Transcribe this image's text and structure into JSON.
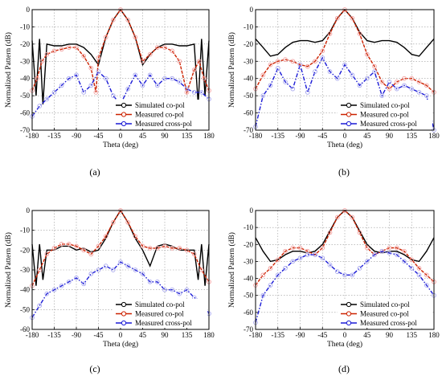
{
  "figure": {
    "panel_labels": [
      "(a)",
      "(b)",
      "(c)",
      "(d)"
    ],
    "legend_labels": [
      "Simulated co-pol",
      "Measured co-pol",
      "Measured cross-pol"
    ],
    "colors": {
      "simulated": "#000000",
      "measured_co": "#cc2200",
      "measured_cross": "#1a1ad6",
      "marker_co": "#f2a0a0",
      "marker_cross": "#a8a8ee"
    }
  },
  "chart_data": [
    {
      "type": "line",
      "panel": "(a)",
      "xlabel": "Theta (deg)",
      "ylabel": "Normalized Pattern (dB)",
      "xlim": [
        -180,
        180
      ],
      "ylim": [
        -70,
        0
      ],
      "xticks": [
        -180,
        -135,
        -90,
        -45,
        0,
        45,
        90,
        135,
        180
      ],
      "yticks": [
        0,
        -10,
        -20,
        -30,
        -40,
        -50,
        -60,
        -70
      ],
      "grid": true,
      "legend": "bottom-right",
      "series": [
        {
          "name": "Simulated co-pol",
          "x": [
            -180,
            -172,
            -165,
            -158,
            -150,
            -135,
            -120,
            -105,
            -90,
            -75,
            -60,
            -45,
            -30,
            -15,
            0,
            15,
            30,
            45,
            60,
            75,
            90,
            105,
            120,
            135,
            150,
            158,
            165,
            172,
            180
          ],
          "values": [
            -18,
            -50,
            -17,
            -55,
            -20,
            -21,
            -21,
            -20,
            -20,
            -22,
            -26,
            -32,
            -16,
            -6,
            0,
            -6,
            -16,
            -32,
            -26,
            -22,
            -20,
            -20,
            -21,
            -21,
            -20,
            -55,
            -17,
            -50,
            -18
          ]
        },
        {
          "name": "Measured co-pol",
          "x": [
            -180,
            -170,
            -160,
            -150,
            -135,
            -120,
            -105,
            -90,
            -75,
            -60,
            -50,
            -45,
            -30,
            -15,
            0,
            15,
            30,
            45,
            60,
            75,
            90,
            105,
            120,
            135,
            150,
            160,
            170,
            180
          ],
          "values": [
            -47,
            -40,
            -30,
            -26,
            -24,
            -23,
            -22,
            -22,
            -27,
            -34,
            -48,
            -28,
            -16,
            -6,
            0,
            -6,
            -16,
            -30,
            -26,
            -22,
            -22,
            -24,
            -30,
            -48,
            -35,
            -30,
            -40,
            -47
          ]
        },
        {
          "name": "Measured cross-pol",
          "x": [
            -180,
            -165,
            -150,
            -135,
            -120,
            -105,
            -90,
            -75,
            -60,
            -45,
            -30,
            -15,
            0,
            15,
            30,
            45,
            60,
            75,
            90,
            105,
            120,
            135,
            150,
            165,
            180
          ],
          "values": [
            -62,
            -56,
            -52,
            -48,
            -44,
            -40,
            -38,
            -48,
            -44,
            -36,
            -40,
            -50,
            -55,
            -46,
            -38,
            -44,
            -38,
            -44,
            -40,
            -40,
            -42,
            -46,
            -48,
            -48,
            -52
          ]
        }
      ]
    },
    {
      "type": "line",
      "panel": "(b)",
      "xlabel": "Theta (deg)",
      "ylabel": "Normalized Pattern (dB)",
      "xlim": [
        -180,
        180
      ],
      "ylim": [
        -70,
        0
      ],
      "xticks": [
        -180,
        -135,
        -90,
        -45,
        0,
        45,
        90,
        135,
        180
      ],
      "yticks": [
        0,
        -10,
        -20,
        -30,
        -40,
        -50,
        -60,
        -70
      ],
      "grid": true,
      "legend": "bottom-right",
      "series": [
        {
          "name": "Simulated co-pol",
          "x": [
            -180,
            -165,
            -150,
            -135,
            -120,
            -105,
            -90,
            -75,
            -60,
            -45,
            -30,
            -15,
            0,
            15,
            30,
            45,
            60,
            75,
            90,
            105,
            120,
            135,
            150,
            165,
            180
          ],
          "values": [
            -17,
            -22,
            -27,
            -26,
            -22,
            -19,
            -18,
            -18,
            -19,
            -18,
            -13,
            -5,
            0,
            -5,
            -13,
            -18,
            -19,
            -18,
            -18,
            -19,
            -22,
            -26,
            -27,
            -22,
            -17
          ]
        },
        {
          "name": "Measured co-pol",
          "x": [
            -180,
            -165,
            -150,
            -135,
            -120,
            -105,
            -90,
            -75,
            -60,
            -45,
            -30,
            -15,
            0,
            15,
            30,
            45,
            60,
            75,
            90,
            105,
            120,
            135,
            150,
            165,
            180
          ],
          "values": [
            -46,
            -38,
            -32,
            -30,
            -29,
            -30,
            -32,
            -33,
            -30,
            -24,
            -14,
            -5,
            0,
            -5,
            -14,
            -26,
            -33,
            -42,
            -46,
            -42,
            -40,
            -40,
            -42,
            -44,
            -48
          ]
        },
        {
          "name": "Measured cross-pol",
          "x": [
            -180,
            -165,
            -150,
            -135,
            -120,
            -105,
            -90,
            -75,
            -60,
            -45,
            -30,
            -15,
            0,
            15,
            30,
            45,
            60,
            75,
            90,
            105,
            120,
            135,
            150,
            165,
            180
          ],
          "values": [
            -68,
            -50,
            -44,
            -34,
            -42,
            -46,
            -32,
            -48,
            -36,
            -28,
            -36,
            -40,
            -32,
            -38,
            -44,
            -40,
            -36,
            -50,
            -42,
            -46,
            -44,
            -46,
            -48,
            -50,
            -70
          ]
        }
      ]
    },
    {
      "type": "line",
      "panel": "(c)",
      "xlabel": "Theta (deg)",
      "ylabel": "Normalized Pattern (dB)",
      "xlim": [
        -180,
        180
      ],
      "ylim": [
        -60,
        0
      ],
      "xticks": [
        -180,
        -135,
        -90,
        -45,
        0,
        45,
        90,
        135,
        180
      ],
      "yticks": [
        0,
        -10,
        -20,
        -30,
        -40,
        -50,
        -60
      ],
      "grid": true,
      "legend": "bottom-right",
      "series": [
        {
          "name": "Simulated co-pol",
          "x": [
            -180,
            -172,
            -165,
            -158,
            -150,
            -135,
            -120,
            -105,
            -90,
            -75,
            -60,
            -45,
            -30,
            -15,
            0,
            15,
            30,
            45,
            60,
            75,
            90,
            105,
            120,
            135,
            150,
            158,
            165,
            172,
            180
          ],
          "values": [
            -17,
            -38,
            -17,
            -35,
            -20,
            -20,
            -18,
            -18,
            -20,
            -19,
            -21,
            -20,
            -14,
            -6,
            0,
            -6,
            -14,
            -20,
            -28,
            -18,
            -17,
            -18,
            -20,
            -20,
            -20,
            -35,
            -17,
            -38,
            -17
          ]
        },
        {
          "name": "Measured co-pol",
          "x": [
            -180,
            -165,
            -150,
            -135,
            -120,
            -105,
            -90,
            -75,
            -60,
            -45,
            -30,
            -15,
            0,
            15,
            30,
            45,
            60,
            75,
            90,
            105,
            120,
            135,
            150,
            165,
            180
          ],
          "values": [
            -38,
            -30,
            -22,
            -19,
            -17,
            -17,
            -18,
            -20,
            -22,
            -18,
            -13,
            -6,
            0,
            -6,
            -13,
            -18,
            -19,
            -19,
            -18,
            -19,
            -19,
            -20,
            -22,
            -30,
            -36
          ]
        },
        {
          "name": "Measured cross-pol",
          "x": [
            -180,
            -165,
            -150,
            -135,
            -120,
            -105,
            -90,
            -75,
            -60,
            -45,
            -30,
            -15,
            0,
            15,
            30,
            45,
            60,
            75,
            90,
            105,
            120,
            135,
            150,
            165,
            180
          ],
          "values": [
            -54,
            -48,
            -42,
            -40,
            -38,
            -36,
            -34,
            -37,
            -32,
            -30,
            -28,
            -30,
            -26,
            -28,
            -30,
            -32,
            -36,
            -36,
            -40,
            -40,
            -42,
            -40,
            -44,
            -46,
            -52
          ]
        }
      ]
    },
    {
      "type": "line",
      "panel": "(d)",
      "xlabel": "Theta (deg)",
      "ylabel": "Normalized Pattern (dB)",
      "xlim": [
        -180,
        180
      ],
      "ylim": [
        -70,
        0
      ],
      "xticks": [
        -180,
        -135,
        -90,
        -45,
        0,
        45,
        90,
        135,
        180
      ],
      "yticks": [
        0,
        -10,
        -20,
        -30,
        -40,
        -50,
        -60,
        -70
      ],
      "grid": true,
      "legend": "bottom-right",
      "series": [
        {
          "name": "Simulated co-pol",
          "x": [
            -180,
            -165,
            -150,
            -135,
            -120,
            -105,
            -90,
            -75,
            -60,
            -45,
            -30,
            -15,
            0,
            15,
            30,
            45,
            60,
            75,
            90,
            105,
            120,
            135,
            150,
            165,
            180
          ],
          "values": [
            -16,
            -24,
            -30,
            -29,
            -26,
            -24,
            -24,
            -25,
            -24,
            -20,
            -12,
            -4,
            0,
            -4,
            -12,
            -20,
            -24,
            -25,
            -24,
            -24,
            -26,
            -29,
            -30,
            -24,
            -16
          ]
        },
        {
          "name": "Measured co-pol",
          "x": [
            -180,
            -165,
            -150,
            -135,
            -120,
            -105,
            -90,
            -75,
            -60,
            -45,
            -30,
            -15,
            0,
            15,
            30,
            45,
            60,
            75,
            90,
            105,
            120,
            135,
            150,
            165,
            180
          ],
          "values": [
            -44,
            -38,
            -34,
            -29,
            -24,
            -22,
            -22,
            -24,
            -26,
            -22,
            -13,
            -4,
            0,
            -4,
            -13,
            -22,
            -26,
            -24,
            -22,
            -22,
            -24,
            -29,
            -34,
            -38,
            -42
          ]
        },
        {
          "name": "Measured cross-pol",
          "x": [
            -180,
            -165,
            -150,
            -135,
            -120,
            -105,
            -90,
            -75,
            -60,
            -45,
            -30,
            -15,
            0,
            15,
            30,
            45,
            60,
            75,
            90,
            105,
            120,
            135,
            150,
            165,
            180
          ],
          "values": [
            -66,
            -50,
            -44,
            -38,
            -34,
            -30,
            -28,
            -26,
            -26,
            -28,
            -32,
            -36,
            -38,
            -38,
            -34,
            -30,
            -26,
            -24,
            -25,
            -26,
            -30,
            -34,
            -38,
            -44,
            -50
          ]
        }
      ]
    }
  ]
}
